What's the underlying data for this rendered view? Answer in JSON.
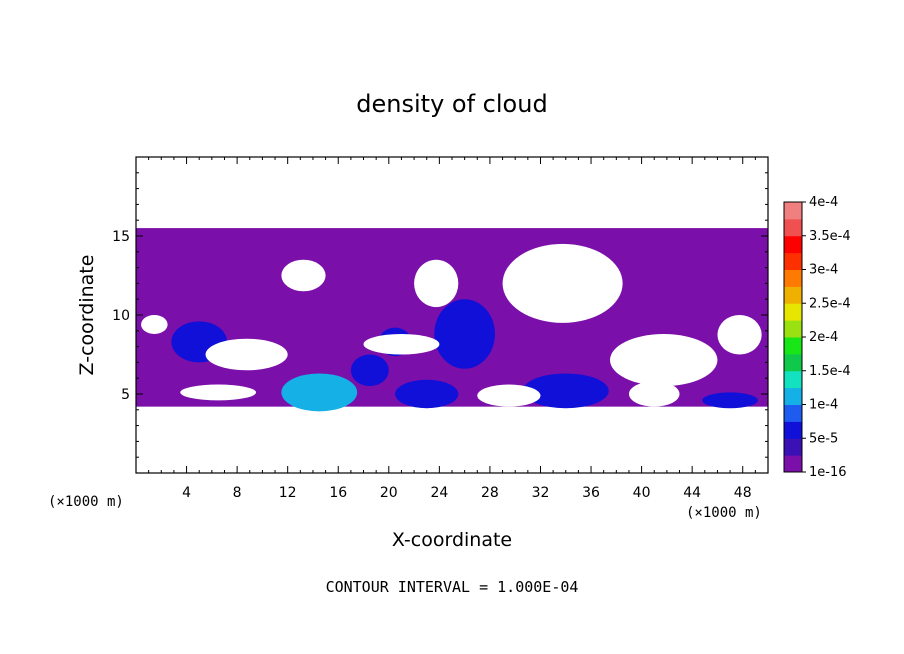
{
  "chart_data": {
    "type": "contour",
    "title": "density of cloud",
    "xlabel": "X-coordinate",
    "ylabel": "Z-coordinate",
    "x_unit": "(×1000 m)",
    "y_unit": "(×1000 m)",
    "xlim": [
      0,
      50
    ],
    "ylim": [
      0,
      20
    ],
    "x_ticks": [
      4,
      8,
      12,
      16,
      20,
      24,
      28,
      32,
      36,
      40,
      44,
      48
    ],
    "y_ticks": [
      5,
      10,
      15
    ],
    "contour_interval_text": "CONTOUR INTERVAL = 1.000E-04",
    "colorbar": {
      "labels": [
        "1e-16",
        "5e-5",
        "1e-4",
        "1.5e-4",
        "2e-4",
        "2.5e-4",
        "3e-4",
        "3.5e-4",
        "4e-4"
      ],
      "colors": [
        "#7b0faa",
        "#3b10b5",
        "#1010d8",
        "#1e5cf0",
        "#14b0e6",
        "#12e2c0",
        "#10c84a",
        "#18e616",
        "#9be010",
        "#e6e600",
        "#f0b000",
        "#ff7a00",
        "#ff3000",
        "#ff0000",
        "#f05050",
        "#f08080"
      ]
    },
    "cloud_layer": {
      "x_range": [
        0,
        50
      ],
      "z_range": [
        4.2,
        15.5
      ],
      "level": "1e-16"
    },
    "clear_regions": [
      {
        "x": [
          5.5,
          12
        ],
        "z": [
          6.5,
          8.5
        ]
      },
      {
        "x": [
          18,
          24
        ],
        "z": [
          7.5,
          8.8
        ]
      },
      {
        "x": [
          11.5,
          15
        ],
        "z": [
          11.5,
          13.5
        ]
      },
      {
        "x": [
          22,
          25.5
        ],
        "z": [
          10.5,
          13.5
        ]
      },
      {
        "x": [
          29,
          38.5
        ],
        "z": [
          9.5,
          14.5
        ]
      },
      {
        "x": [
          37.5,
          46
        ],
        "z": [
          5.5,
          8.8
        ]
      },
      {
        "x": [
          3.5,
          9.5
        ],
        "z": [
          4.6,
          5.6
        ]
      },
      {
        "x": [
          0.4,
          2.5
        ],
        "z": [
          8.8,
          10
        ]
      },
      {
        "x": [
          27,
          32
        ],
        "z": [
          4.2,
          5.6
        ]
      },
      {
        "x": [
          39,
          43
        ],
        "z": [
          4.2,
          5.8
        ]
      },
      {
        "x": [
          46,
          49.5
        ],
        "z": [
          7.5,
          10
        ]
      }
    ],
    "blue_cores": [
      {
        "x": 14.5,
        "z": 5.1,
        "rx": 3,
        "rz": 1.2,
        "level": "1e-4"
      },
      {
        "x": 23,
        "z": 5,
        "rx": 2.5,
        "rz": 0.9,
        "level": "5e-5"
      },
      {
        "x": 34,
        "z": 5.2,
        "rx": 3.4,
        "rz": 1.1,
        "level": "5e-5"
      },
      {
        "x": 26,
        "z": 8.8,
        "rx": 2.4,
        "rz": 2.2,
        "level": "5e-5"
      },
      {
        "x": 5,
        "z": 8.3,
        "rx": 2.2,
        "rz": 1.3,
        "level": "5e-5"
      },
      {
        "x": 18.5,
        "z": 6.5,
        "rx": 1.5,
        "rz": 1,
        "level": "5e-5"
      },
      {
        "x": 20.5,
        "z": 8.3,
        "rx": 1.3,
        "rz": 0.9,
        "level": "5e-5"
      },
      {
        "x": 47,
        "z": 4.6,
        "rx": 2.2,
        "rz": 0.5,
        "level": "5e-5"
      }
    ]
  }
}
